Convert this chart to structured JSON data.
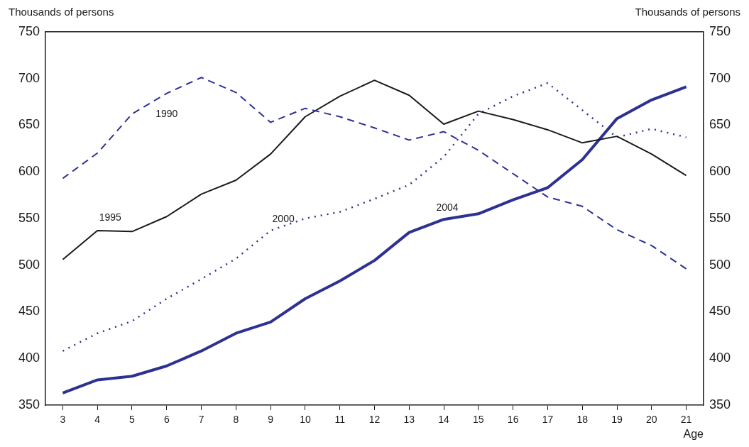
{
  "chart_data": {
    "type": "line",
    "xlabel": "Age",
    "ylabel": "Thousands of persons",
    "y2label": "Thousands of persons",
    "categories": [
      "3",
      "4",
      "5",
      "6",
      "7",
      "8",
      "9",
      "10",
      "11",
      "12",
      "13",
      "14",
      "15",
      "16",
      "17",
      "18",
      "19",
      "20",
      "21"
    ],
    "series": [
      {
        "name": "1990",
        "color": "#2e3192",
        "line_style": "dashed",
        "values": [
          593,
          620,
          662,
          684,
          701,
          685,
          653,
          668,
          659,
          647,
          634,
          643,
          623,
          598,
          573,
          563,
          538,
          521,
          496
        ]
      },
      {
        "name": "1995",
        "color": "#1a1a1a",
        "line_style": "solid",
        "values": [
          506,
          537,
          536,
          552,
          576,
          591,
          619,
          659,
          681,
          698,
          682,
          651,
          665,
          656,
          645,
          631,
          638,
          619,
          596
        ]
      },
      {
        "name": "2000",
        "color": "#2e3192",
        "line_style": "dotted",
        "values": [
          408,
          427,
          440,
          464,
          485,
          507,
          537,
          550,
          557,
          571,
          586,
          616,
          662,
          681,
          695,
          666,
          637,
          646,
          637
        ]
      },
      {
        "name": "2004",
        "color": "#2e3192",
        "line_style": "solid",
        "values": [
          363,
          377,
          381,
          392,
          408,
          427,
          439,
          464,
          483,
          505,
          535,
          549,
          555,
          570,
          583,
          613,
          657,
          677,
          691
        ]
      }
    ],
    "ylim": [
      350,
      750
    ],
    "yticks": [
      350,
      400,
      450,
      500,
      550,
      600,
      650,
      700,
      750
    ],
    "y2lim": [
      350,
      750
    ],
    "y2ticks": [
      350,
      400,
      450,
      500,
      550,
      600,
      650,
      700,
      750
    ],
    "grid": false,
    "legend": false,
    "marker": "none"
  }
}
